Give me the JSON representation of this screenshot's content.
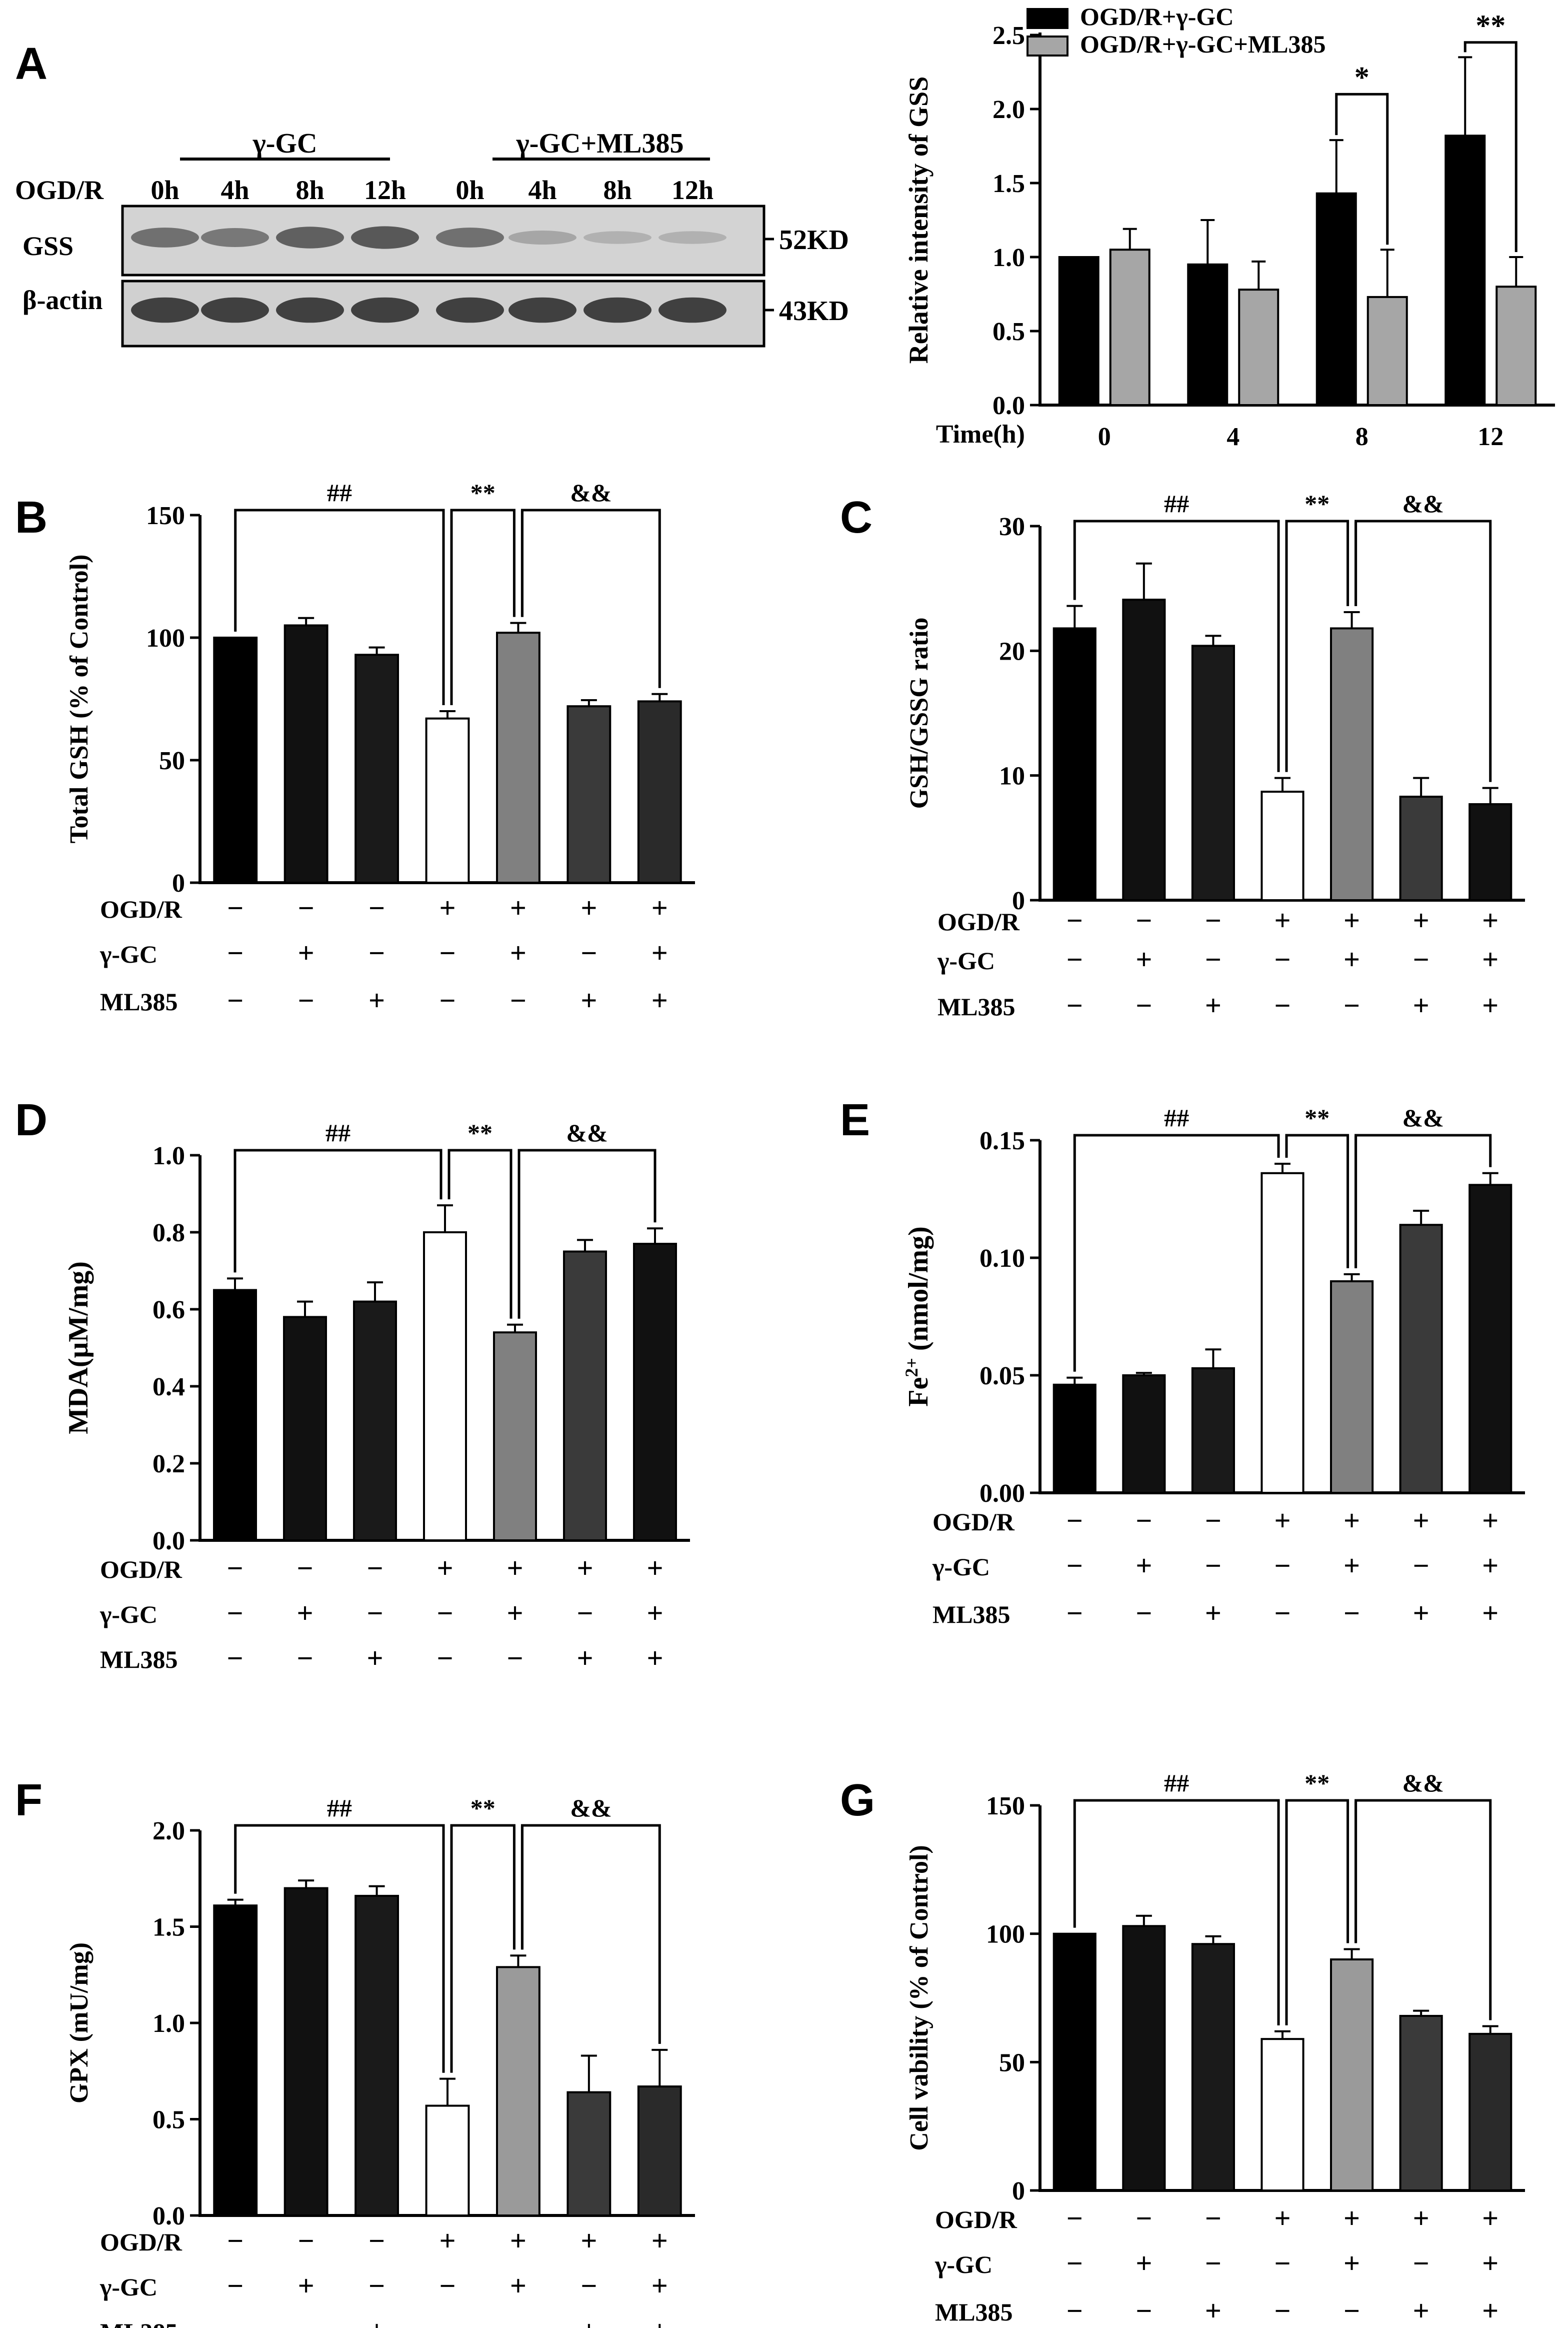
{
  "panel_letters": [
    "A",
    "B",
    "C",
    "D",
    "E",
    "F",
    "G"
  ],
  "western_blot": {
    "group_labels": [
      "γ-GC",
      "γ-GC+ML385"
    ],
    "row_label": "OGD/R",
    "timepoints": [
      "0h",
      "4h",
      "8h",
      "12h",
      "0h",
      "4h",
      "8h",
      "12h"
    ],
    "bands": [
      {
        "protein": "GSS",
        "size": "52KD",
        "intensity": [
          0.55,
          0.5,
          0.65,
          0.7,
          0.55,
          0.22,
          0.15,
          0.15
        ]
      },
      {
        "protein": "β-actin",
        "size": "43KD",
        "intensity": [
          0.85,
          0.85,
          0.85,
          0.85,
          0.85,
          0.85,
          0.85,
          0.85
        ]
      }
    ]
  },
  "treatment_rows": [
    {
      "label": "OGD/R",
      "signs": [
        "−",
        "−",
        "−",
        "+",
        "+",
        "+",
        "+"
      ]
    },
    {
      "label": "γ-GC",
      "signs": [
        "−",
        "+",
        "−",
        "−",
        "+",
        "−",
        "+"
      ]
    },
    {
      "label": "ML385",
      "signs": [
        "−",
        "−",
        "+",
        "−",
        "−",
        "+",
        "+"
      ]
    }
  ],
  "chart_data": [
    {
      "panel": "A",
      "type": "bar",
      "xlabel": "Time(h)",
      "ylabel": "Relative intensity of GSS",
      "categories": [
        "0",
        "4",
        "8",
        "12"
      ],
      "ylim": [
        0,
        2.5
      ],
      "yticks": [
        "0.0",
        "0.5",
        "1.0",
        "1.5",
        "2.0",
        "2.5"
      ],
      "legend": "top-right",
      "series": [
        {
          "name": "OGD/R+γ-GC",
          "color": "#000000",
          "values": [
            1.0,
            0.95,
            1.43,
            1.82
          ],
          "errors": [
            0,
            0.3,
            0.36,
            0.53
          ]
        },
        {
          "name": "OGD/R+γ-GC+ML385",
          "color": "#a6a6a6",
          "values": [
            1.05,
            0.78,
            0.73,
            0.8
          ],
          "errors": [
            0.14,
            0.19,
            0.32,
            0.2
          ]
        }
      ],
      "significance": [
        {
          "category": 2,
          "label": "*"
        },
        {
          "category": 3,
          "label": "**"
        }
      ]
    },
    {
      "panel": "B",
      "type": "bar",
      "ylabel": "Total GSH (% of Control)",
      "ylim": [
        0,
        150
      ],
      "yticks": [
        "0",
        "50",
        "100",
        "150"
      ],
      "values": [
        100,
        105,
        93,
        67,
        102,
        72,
        74
      ],
      "errors": [
        0,
        3,
        3,
        3,
        4,
        2.5,
        3
      ],
      "colors": [
        "#000000",
        "#111111",
        "#1a1a1a",
        "#ffffff",
        "#808080",
        "#3a3a3a",
        "#2a2a2a"
      ],
      "comparisons": [
        {
          "from": 0,
          "to": 3,
          "label": "##"
        },
        {
          "from": 3,
          "to": 4,
          "label": "**"
        },
        {
          "from": 4,
          "to": 6,
          "label": "&&"
        }
      ]
    },
    {
      "panel": "C",
      "type": "bar",
      "ylabel": "GSH/GSSG ratio",
      "ylim": [
        0,
        30
      ],
      "yticks": [
        "0",
        "10",
        "20",
        "30"
      ],
      "values": [
        21.8,
        24.1,
        20.4,
        8.7,
        21.8,
        8.3,
        7.7
      ],
      "errors": [
        1.8,
        2.9,
        0.8,
        1.1,
        1.3,
        1.5,
        1.3
      ],
      "colors": [
        "#000000",
        "#111111",
        "#1a1a1a",
        "#ffffff",
        "#808080",
        "#3a3a3a",
        "#111111"
      ],
      "comparisons": [
        {
          "from": 0,
          "to": 3,
          "label": "##"
        },
        {
          "from": 3,
          "to": 4,
          "label": "**"
        },
        {
          "from": 4,
          "to": 6,
          "label": "&&"
        }
      ]
    },
    {
      "panel": "D",
      "type": "bar",
      "ylabel": "MDA(μM/mg)",
      "ylim": [
        0,
        1.0
      ],
      "yticks": [
        "0.0",
        "0.2",
        "0.4",
        "0.6",
        "0.8",
        "1.0"
      ],
      "values": [
        0.65,
        0.58,
        0.62,
        0.8,
        0.54,
        0.75,
        0.77
      ],
      "errors": [
        0.03,
        0.04,
        0.05,
        0.07,
        0.02,
        0.03,
        0.04
      ],
      "colors": [
        "#000000",
        "#111111",
        "#1a1a1a",
        "#ffffff",
        "#808080",
        "#3a3a3a",
        "#111111"
      ],
      "comparisons": [
        {
          "from": 0,
          "to": 3,
          "label": "##"
        },
        {
          "from": 3,
          "to": 4,
          "label": "**"
        },
        {
          "from": 4,
          "to": 6,
          "label": "&&"
        }
      ]
    },
    {
      "panel": "E",
      "type": "bar",
      "ylabel_main": "Fe",
      "ylabel_sup": "2+",
      "ylabel_rest": " (nmol/mg)",
      "ylim": [
        0,
        0.15
      ],
      "yticks": [
        "0.00",
        "0.05",
        "0.10",
        "0.15"
      ],
      "values": [
        0.046,
        0.05,
        0.053,
        0.136,
        0.09,
        0.114,
        0.131
      ],
      "errors": [
        0.003,
        0.001,
        0.008,
        0.004,
        0.003,
        0.006,
        0.005
      ],
      "colors": [
        "#000000",
        "#111111",
        "#1a1a1a",
        "#ffffff",
        "#808080",
        "#3a3a3a",
        "#111111"
      ],
      "comparisons": [
        {
          "from": 0,
          "to": 3,
          "label": "##"
        },
        {
          "from": 3,
          "to": 4,
          "label": "**"
        },
        {
          "from": 4,
          "to": 6,
          "label": "&&"
        }
      ]
    },
    {
      "panel": "F",
      "type": "bar",
      "ylabel": "GPX (mU/mg)",
      "ylim": [
        0,
        2.0
      ],
      "yticks": [
        "0.0",
        "0.5",
        "1.0",
        "1.5",
        "2.0"
      ],
      "values": [
        1.61,
        1.7,
        1.66,
        0.57,
        1.29,
        0.64,
        0.67
      ],
      "errors": [
        0.03,
        0.04,
        0.05,
        0.14,
        0.06,
        0.19,
        0.19
      ],
      "colors": [
        "#000000",
        "#111111",
        "#1a1a1a",
        "#ffffff",
        "#9a9a9a",
        "#3a3a3a",
        "#2a2a2a"
      ],
      "comparisons": [
        {
          "from": 0,
          "to": 3,
          "label": "##"
        },
        {
          "from": 3,
          "to": 4,
          "label": "**"
        },
        {
          "from": 4,
          "to": 6,
          "label": "&&"
        }
      ]
    },
    {
      "panel": "G",
      "type": "bar",
      "ylabel": "Cell vability (% of Control)",
      "ylim": [
        0,
        150
      ],
      "yticks": [
        "0",
        "50",
        "100",
        "150"
      ],
      "values": [
        100,
        103,
        96,
        59,
        90,
        68,
        61
      ],
      "errors": [
        0,
        4,
        3,
        3,
        4,
        2,
        3
      ],
      "colors": [
        "#000000",
        "#111111",
        "#1a1a1a",
        "#ffffff",
        "#9a9a9a",
        "#3a3a3a",
        "#2a2a2a"
      ],
      "comparisons": [
        {
          "from": 0,
          "to": 3,
          "label": "##"
        },
        {
          "from": 3,
          "to": 4,
          "label": "**"
        },
        {
          "from": 4,
          "to": 6,
          "label": "&&"
        }
      ]
    }
  ]
}
